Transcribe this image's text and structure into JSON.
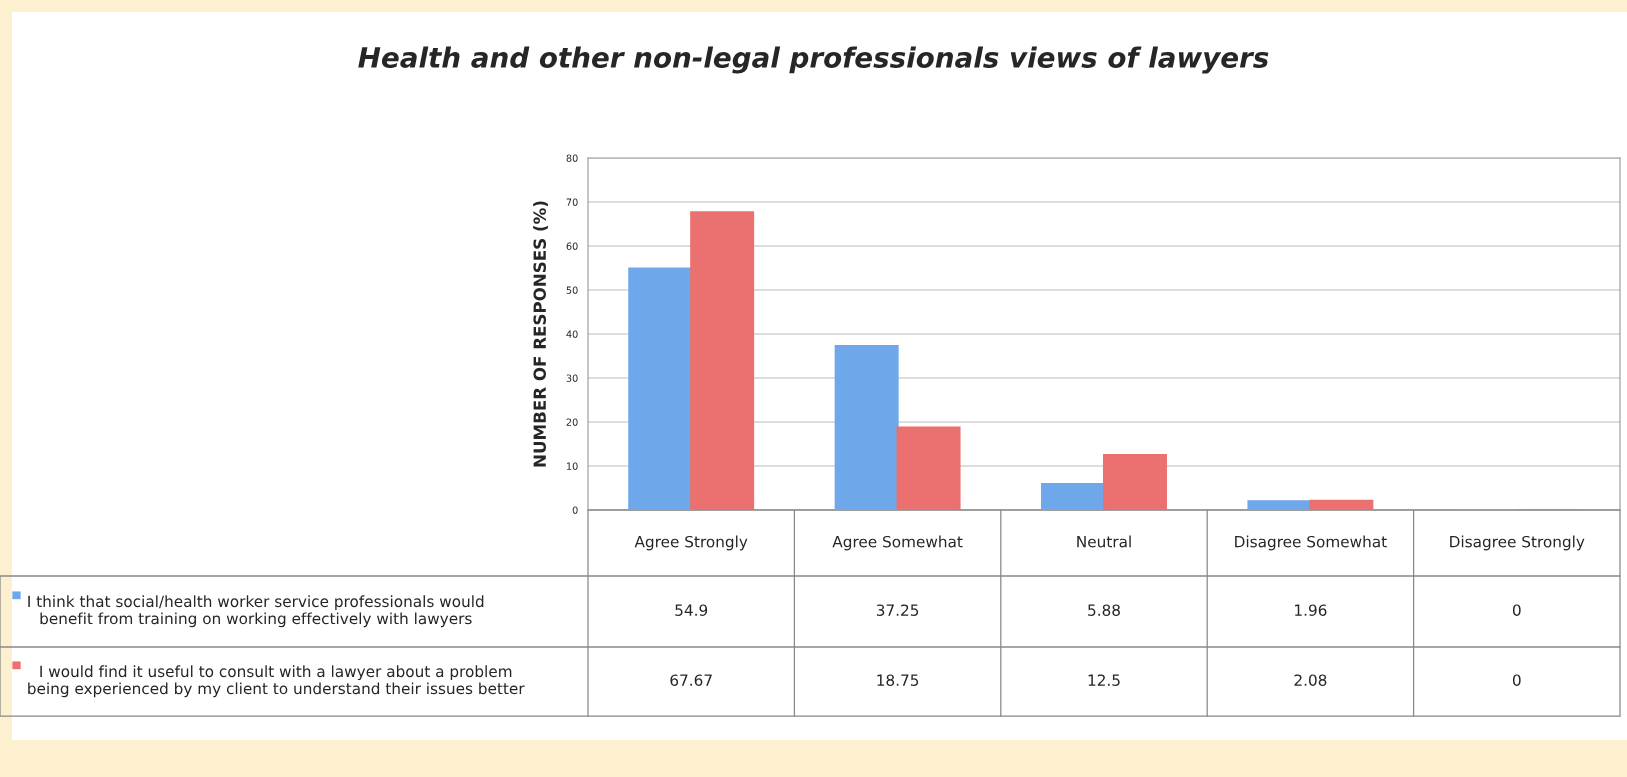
{
  "chart_data": {
    "type": "bar",
    "title": "Health and other non-legal professionals views of lawyers",
    "ylabel": "NUMBER OF RESPONSES (%)",
    "categories": [
      "Agree Strongly",
      "Agree Somewhat",
      "Neutral",
      "Disagree Somewhat",
      "Disagree Strongly"
    ],
    "series": [
      {
        "name": "I think that social/health worker service professionals would benefit from training on working effectively with lawyers",
        "color": "#6fa8ea",
        "values": [
          54.9,
          37.25,
          5.88,
          1.96,
          0
        ]
      },
      {
        "name": "I would find it useful to consult with a lawyer about a problem being experienced by my client to understand their issues better",
        "color": "#ea716f",
        "values": [
          67.67,
          18.75,
          12.5,
          2.08,
          0
        ]
      }
    ],
    "ylim": [
      0,
      80
    ],
    "yticks": [
      0,
      10,
      20,
      30,
      40,
      50,
      60,
      70,
      80
    ],
    "grid": "y",
    "data_labels": true,
    "legend": "bottom left"
  }
}
